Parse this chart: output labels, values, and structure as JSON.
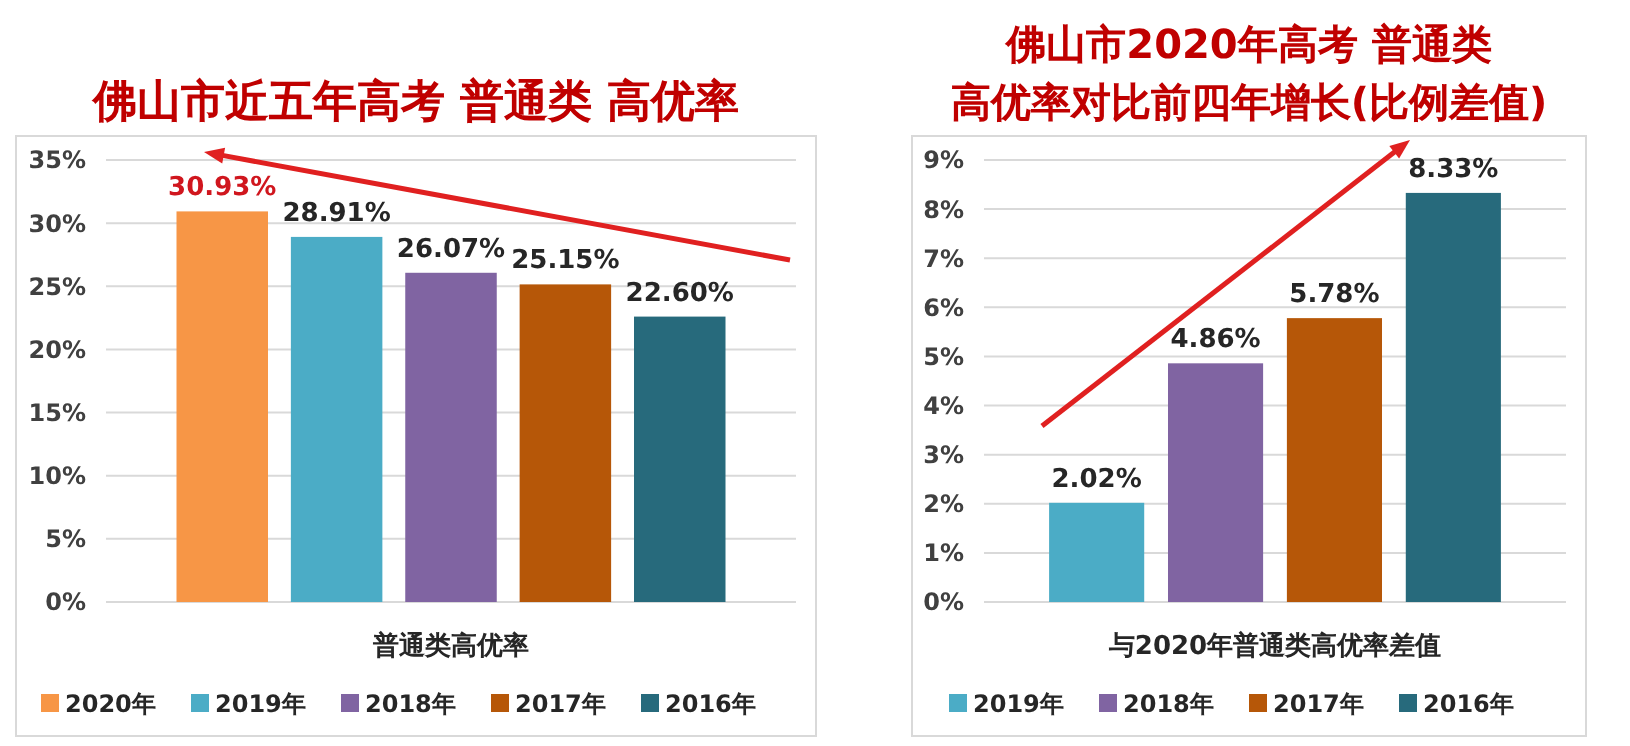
{
  "chart_data": [
    {
      "type": "bar",
      "title": "佛山市近五年高考 普通类 高优率",
      "categories": [
        "普通类高优率"
      ],
      "series": [
        {
          "name": "2020年",
          "color": "#f79646",
          "values": [
            30.93
          ]
        },
        {
          "name": "2019年",
          "color": "#4bacc6",
          "values": [
            28.91
          ]
        },
        {
          "name": "2018年",
          "color": "#8064a2",
          "values": [
            26.07
          ]
        },
        {
          "name": "2017年",
          "color": "#b65708",
          "values": [
            25.15
          ]
        },
        {
          "name": "2016年",
          "color": "#276a7c",
          "values": [
            22.6
          ]
        }
      ],
      "ylim": [
        0,
        35
      ],
      "yticks": [
        {
          "value": 0,
          "label": "0%"
        },
        {
          "value": 5,
          "label": "5%"
        },
        {
          "value": 10,
          "label": "10%"
        },
        {
          "value": 15,
          "label": "15%"
        },
        {
          "value": 20,
          "label": "20%"
        },
        {
          "value": 25,
          "label": "25%"
        },
        {
          "value": 30,
          "label": "30%"
        },
        {
          "value": 35,
          "label": "35%"
        }
      ],
      "value_labels": [
        "30.93%",
        "28.91%",
        "26.07%",
        "25.15%",
        "22.60%"
      ],
      "grid": "y",
      "legend": "bottom"
    },
    {
      "type": "bar",
      "title": "佛山市2020年高考 普通类",
      "subtitle": "高优率对比前四年增长(比例差值)",
      "categories": [
        "与2020年普通类高优率差值"
      ],
      "series": [
        {
          "name": "2019年",
          "color": "#4bacc6",
          "values": [
            2.02
          ]
        },
        {
          "name": "2018年",
          "color": "#8064a2",
          "values": [
            4.86
          ]
        },
        {
          "name": "2017年",
          "color": "#b65708",
          "values": [
            5.78
          ]
        },
        {
          "name": "2016年",
          "color": "#276a7c",
          "values": [
            8.33
          ]
        }
      ],
      "ylim": [
        0,
        9
      ],
      "yticks": [
        {
          "value": 0,
          "label": "0%"
        },
        {
          "value": 1,
          "label": "1%"
        },
        {
          "value": 2,
          "label": "2%"
        },
        {
          "value": 3,
          "label": "3%"
        },
        {
          "value": 4,
          "label": "4%"
        },
        {
          "value": 5,
          "label": "5%"
        },
        {
          "value": 6,
          "label": "6%"
        },
        {
          "value": 7,
          "label": "7%"
        },
        {
          "value": 8,
          "label": "8%"
        },
        {
          "value": 9,
          "label": "9%"
        }
      ],
      "value_labels": [
        "2.02%",
        "4.86%",
        "5.78%",
        "8.33%"
      ],
      "grid": "y",
      "legend": "bottom"
    }
  ]
}
